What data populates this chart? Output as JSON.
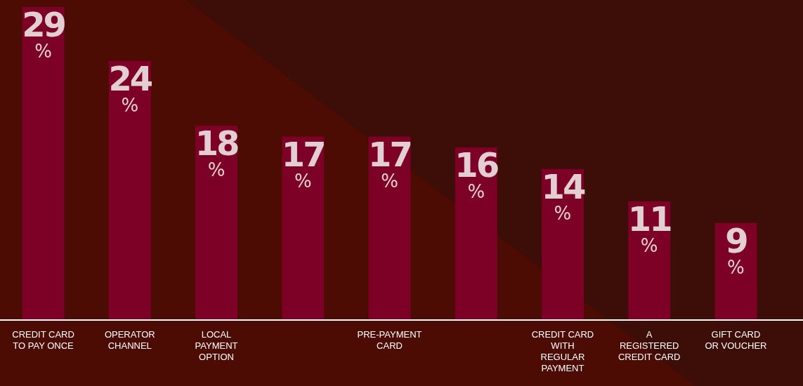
{
  "chart_data": {
    "type": "bar",
    "categories": [
      "CREDIT CARD TO PAY ONCE",
      "OPERATOR CHANNEL",
      "LOCAL PAYMENT OPTION",
      null,
      "PRE-PAYMENT CARD",
      null,
      "CREDIT CARD WITH REGULAR PAYMENT",
      "A REGISTERED CREDIT CARD",
      "GIFT CARD OR VOUCHER"
    ],
    "values": [
      29,
      24,
      18,
      17,
      17,
      16,
      14,
      11,
      9
    ],
    "color": "#7d0027",
    "value_labels": [
      "29%",
      "24%",
      "18%",
      "17%",
      "17%",
      "16%",
      "14%",
      "11%",
      "9%"
    ],
    "ylim": [
      0,
      29
    ],
    "tick_labels": "x"
  }
}
